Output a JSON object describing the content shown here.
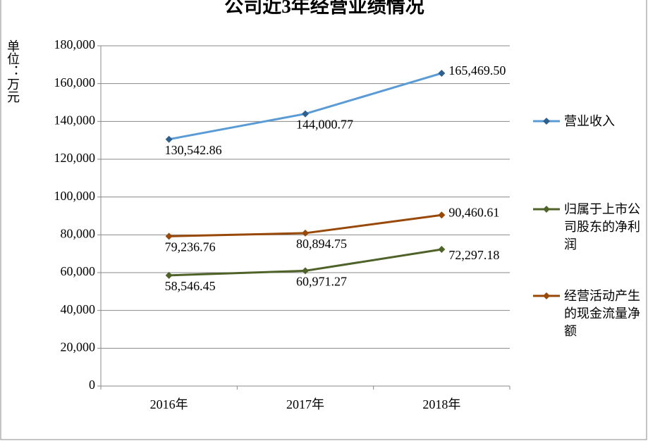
{
  "chart_data": {
    "type": "line",
    "title": "公司近3年经营业绩情况",
    "y_label": "单位：万元",
    "categories": [
      "2016年",
      "2017年",
      "2018年"
    ],
    "series": [
      {
        "name": "营业收入",
        "color": "#5b9bd5",
        "marker_color": "#2e5f8f",
        "values": [
          130542.86,
          144000.77,
          165469.5
        ],
        "value_labels": [
          "130,542.86",
          "144,000.77",
          "165,469.50"
        ]
      },
      {
        "name": "归属于上市公司股东的净利润",
        "color": "#4f6228",
        "marker_color": "#4f6228",
        "values": [
          58546.45,
          60971.27,
          72297.18
        ],
        "value_labels": [
          "58,546.45",
          "60,971.27",
          "72,297.18"
        ]
      },
      {
        "name": "经营活动产生的现金流量净额",
        "color": "#984807",
        "marker_color": "#984807",
        "values": [
          79236.76,
          80894.75,
          90460.61
        ],
        "value_labels": [
          "79,236.76",
          "80,894.75",
          "90,460.61"
        ]
      }
    ],
    "ylim": [
      0,
      180000
    ],
    "yticks": [
      0,
      {
        "value": 20000,
        "label": "20,000"
      },
      {
        "value": 40000,
        "label": "40,000"
      },
      {
        "value": 60000,
        "label": "60,000"
      },
      {
        "value": 80000,
        "label": "80,000"
      },
      {
        "value": 100000,
        "label": "100,000"
      },
      {
        "value": 120000,
        "label": "120,000"
      },
      {
        "value": 140000,
        "label": "140,000"
      },
      {
        "value": 160000,
        "label": "160,000"
      },
      {
        "value": 180000,
        "label": "180,000"
      }
    ],
    "grid": true,
    "legend": "right"
  }
}
